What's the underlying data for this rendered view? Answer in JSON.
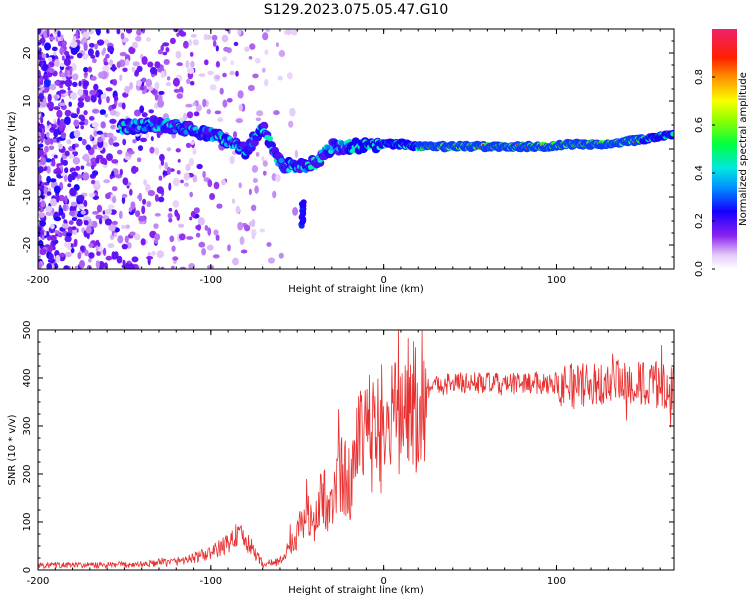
{
  "figure": {
    "title": "S129.2023.075.05.47.G10"
  },
  "chart_data": [
    {
      "type": "heatmap",
      "xlabel": "Height of straight line (km)",
      "ylabel": "Frequency (Hz)",
      "xlim": [
        -200,
        168
      ],
      "ylim": [
        -25,
        25
      ],
      "xticks": [
        -200,
        -100,
        0,
        100
      ],
      "yticks": [
        -20,
        -10,
        0,
        10,
        20
      ],
      "colorbar": {
        "label": "Normalized spectral amplitude",
        "ticks": [
          "0.0",
          "0.2",
          "0.4",
          "0.6",
          "0.8"
        ],
        "range": [
          0,
          1
        ]
      },
      "trace": {
        "x": [
          -150,
          -140,
          -130,
          -120,
          -110,
          -100,
          -90,
          -80,
          -70,
          -60,
          -50,
          -40,
          -30,
          -20,
          -10,
          0,
          10,
          20,
          30,
          50,
          70,
          90,
          110,
          130,
          150,
          165
        ],
        "y": [
          4.5,
          5,
          5.2,
          4.8,
          4,
          3,
          1.5,
          -0.5,
          4.5,
          -3,
          -4,
          -3,
          0.5,
          0.5,
          0.8,
          1,
          1,
          0.5,
          0.5,
          0.5,
          0.5,
          0.5,
          1,
          1,
          2,
          3
        ]
      },
      "grid": false,
      "legend": "none"
    },
    {
      "type": "line",
      "xlabel": "Height of straight line (km)",
      "ylabel": "SNR (10 * v/v)",
      "xlim": [
        -200,
        168
      ],
      "ylim": [
        0,
        500
      ],
      "xticks": [
        -200,
        -100,
        0,
        100
      ],
      "yticks": [
        0,
        100,
        200,
        300,
        400,
        500
      ],
      "color": "#e83030",
      "series": [
        {
          "x": [
            -200,
            -180,
            -160,
            -140,
            -120,
            -110,
            -100,
            -90,
            -85,
            -80,
            -75,
            -70,
            -60,
            -50,
            -45,
            -40,
            -35,
            -30,
            -25,
            -20,
            -15,
            -10,
            -5,
            0,
            5,
            10,
            15,
            20,
            25,
            30,
            40,
            50,
            60,
            70,
            80,
            90,
            100,
            110,
            120,
            130,
            140,
            150,
            160,
            168
          ],
          "y": [
            10,
            10,
            10,
            12,
            18,
            25,
            35,
            55,
            75,
            60,
            40,
            12,
            18,
            70,
            120,
            90,
            160,
            130,
            200,
            180,
            250,
            280,
            290,
            280,
            300,
            320,
            340,
            360,
            380,
            385,
            390,
            390,
            390,
            385,
            390,
            390,
            390,
            385,
            380,
            385,
            390,
            385,
            385,
            380
          ]
        }
      ],
      "grid": false,
      "legend": "none"
    }
  ]
}
